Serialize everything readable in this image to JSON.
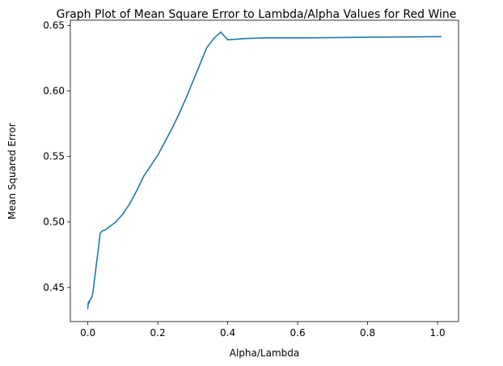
{
  "chart_data": {
    "type": "line",
    "title": "Graph Plot of Mean Square Error to Lambda/Alpha Values for Red Wine",
    "xlabel": "Alpha/Lambda",
    "ylabel": "Mean Squared Error",
    "xlim": [
      -0.05,
      1.06
    ],
    "ylim": [
      0.424,
      0.654
    ],
    "xticks": [
      0.0,
      0.2,
      0.4,
      0.6,
      0.8,
      1.0
    ],
    "xtick_labels": [
      "0.0",
      "0.2",
      "0.4",
      "0.6",
      "0.8",
      "1.0"
    ],
    "yticks": [
      0.45,
      0.5,
      0.55,
      0.6,
      0.65
    ],
    "ytick_labels": [
      "0.45",
      "0.50",
      "0.55",
      "0.60",
      "0.65"
    ],
    "grid": false,
    "series": [
      {
        "color": "#1f77b4",
        "x": [
          0.0,
          0.001,
          0.002,
          0.003,
          0.005,
          0.008,
          0.012,
          0.016,
          0.02,
          0.025,
          0.03,
          0.035,
          0.04,
          0.05,
          0.06,
          0.08,
          0.1,
          0.12,
          0.14,
          0.16,
          0.18,
          0.2,
          0.22,
          0.24,
          0.26,
          0.28,
          0.3,
          0.32,
          0.34,
          0.36,
          0.38,
          0.4,
          0.45,
          0.5,
          0.6,
          0.7,
          0.8,
          0.9,
          1.01
        ],
        "y": [
          0.434,
          0.438,
          0.439,
          0.438,
          0.44,
          0.441,
          0.443,
          0.449,
          0.458,
          0.469,
          0.479,
          0.491,
          0.493,
          0.494,
          0.496,
          0.5,
          0.506,
          0.514,
          0.524,
          0.535,
          0.543,
          0.551,
          0.561,
          0.571,
          0.582,
          0.594,
          0.607,
          0.62,
          0.633,
          0.64,
          0.645,
          0.639,
          0.64,
          0.6405,
          0.6405,
          0.6407,
          0.641,
          0.6412,
          0.6415
        ]
      }
    ]
  }
}
